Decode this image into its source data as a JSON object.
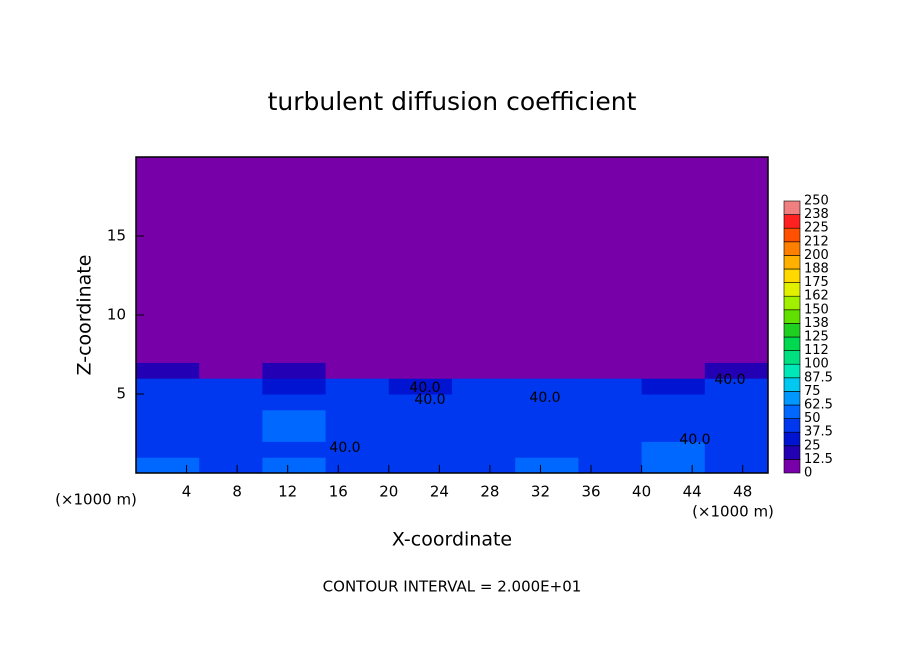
{
  "chart_data": {
    "type": "contour",
    "title": "turbulent diffusion coefficient",
    "x_label": "X-coordinate",
    "y_label": "Z-coordinate",
    "x_unit_label": "(×1000 m)",
    "footer": "CONTOUR INTERVAL = 2.000E+01",
    "contour_level": {
      "value": 40,
      "label": "40.0"
    },
    "xlim": [
      0,
      50
    ],
    "xticks": [
      4,
      8,
      12,
      16,
      20,
      24,
      28,
      32,
      36,
      40,
      44,
      48
    ],
    "ylim": [
      0,
      20
    ],
    "yticks": [
      5,
      10,
      15
    ],
    "x_edges": [
      0,
      5,
      10,
      15,
      20,
      25,
      30,
      35,
      40,
      45,
      50
    ],
    "y_edges": [
      0,
      1,
      2,
      3,
      4,
      5,
      6,
      7,
      20
    ],
    "values": [
      [
        62,
        45,
        60,
        42,
        45,
        42,
        50,
        40,
        55,
        45
      ],
      [
        45,
        40,
        48,
        38,
        45,
        42,
        48,
        42,
        50,
        42
      ],
      [
        42,
        45,
        50,
        40,
        48,
        40,
        45,
        45,
        45,
        40
      ],
      [
        42,
        40,
        50,
        38,
        48,
        42,
        45,
        42,
        48,
        40
      ],
      [
        45,
        40,
        45,
        40,
        48,
        45,
        42,
        40,
        45,
        45
      ],
      [
        42,
        38,
        30,
        42,
        30,
        45,
        40,
        42,
        35,
        42
      ],
      [
        20,
        5,
        15,
        10,
        0,
        0,
        0,
        5,
        10,
        20
      ],
      [
        0,
        0,
        0,
        0,
        0,
        0,
        0,
        0,
        0,
        0
      ]
    ],
    "levels": [
      0,
      12.5,
      25,
      37.5,
      50,
      62.5,
      75,
      87.5,
      100,
      {
        "value": 112.5,
        "label": "112"
      },
      {
        "value": 125,
        "label": "125"
      },
      {
        "value": 137.5,
        "label": "138"
      },
      150,
      {
        "value": 162.5,
        "label": "162"
      },
      175,
      {
        "value": 187.5,
        "label": "188"
      },
      200,
      {
        "value": 212.5,
        "label": "212"
      },
      225,
      {
        "value": 237.5,
        "label": "238"
      },
      250
    ],
    "colors": [
      "#7800a8",
      "#2400b4",
      "#0014d2",
      "#0038f0",
      "#0068ff",
      "#0098ff",
      "#00c8f0",
      "#00e8b8",
      "#00e080",
      "#00d850",
      "#20d020",
      "#60e000",
      "#a0f000",
      "#e0f000",
      "#ffd800",
      "#ffb000",
      "#ff8000",
      "#ff5000",
      "#ff2020",
      "#f08080"
    ]
  }
}
